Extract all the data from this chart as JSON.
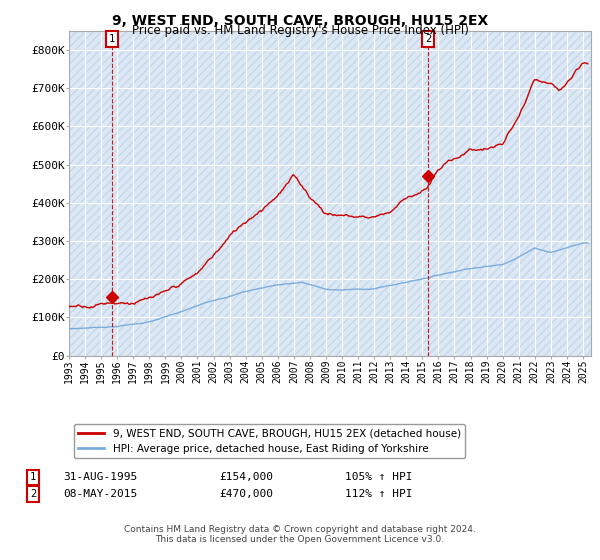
{
  "title": "9, WEST END, SOUTH CAVE, BROUGH, HU15 2EX",
  "subtitle": "Price paid vs. HM Land Registry's House Price Index (HPI)",
  "ylim": [
    0,
    850000
  ],
  "yticks": [
    0,
    100000,
    200000,
    300000,
    400000,
    500000,
    600000,
    700000,
    800000
  ],
  "ytick_labels": [
    "£0",
    "£100K",
    "£200K",
    "£300K",
    "£400K",
    "£500K",
    "£600K",
    "£700K",
    "£800K"
  ],
  "xlim_start": 1993.0,
  "xlim_end": 2025.5,
  "sale1_x": 1995.667,
  "sale1_y": 154000,
  "sale1_label": "1",
  "sale1_date": "31-AUG-1995",
  "sale1_price": "£154,000",
  "sale1_hpi": "105% ↑ HPI",
  "sale2_x": 2015.354,
  "sale2_y": 470000,
  "sale2_label": "2",
  "sale2_date": "08-MAY-2015",
  "sale2_price": "£470,000",
  "sale2_hpi": "112% ↑ HPI",
  "hpi_color": "#7aaddc",
  "price_color": "#cc0000",
  "background_color": "#dce8f5",
  "hatch_color": "#c8d8e8",
  "grid_color": "#ffffff",
  "legend_label_price": "9, WEST END, SOUTH CAVE, BROUGH, HU15 2EX (detached house)",
  "legend_label_hpi": "HPI: Average price, detached house, East Riding of Yorkshire",
  "footer": "Contains HM Land Registry data © Crown copyright and database right 2024.\nThis data is licensed under the Open Government Licence v3.0."
}
